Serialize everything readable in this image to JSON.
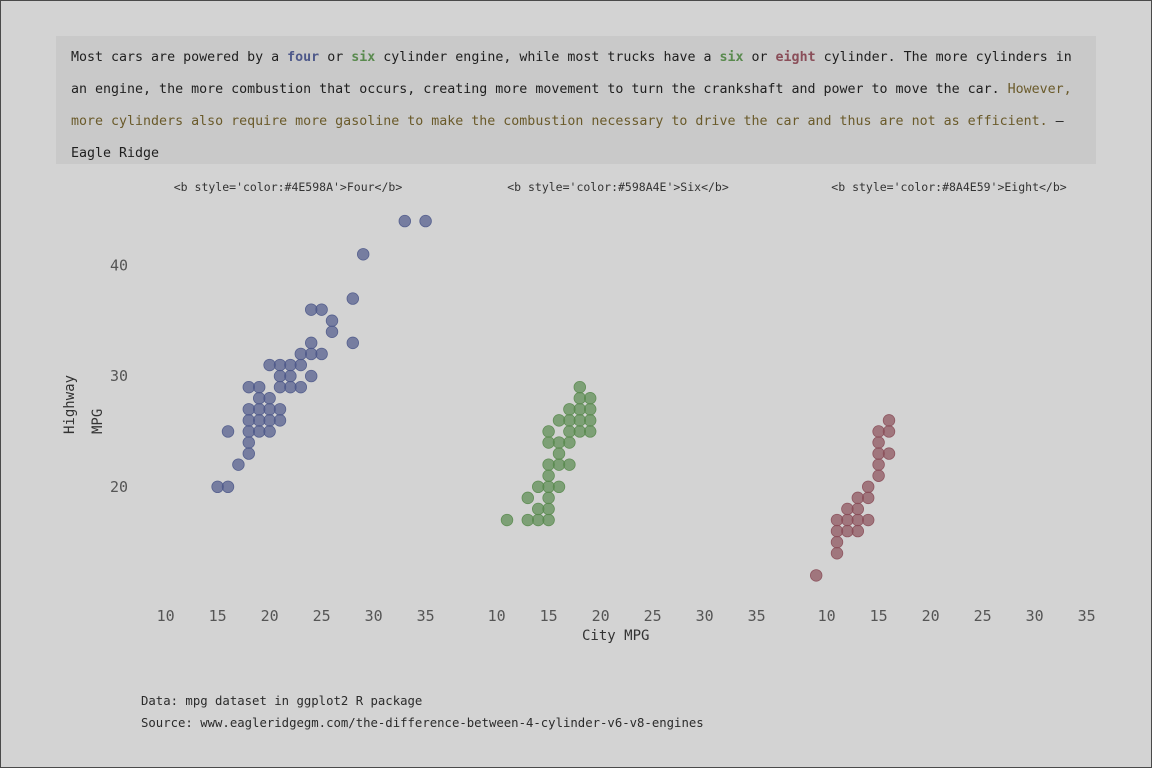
{
  "intro": {
    "t1": "Most cars are powered by a ",
    "four": "four",
    "t2": " or ",
    "six": "six",
    "t3": " cylinder engine, while most trucks have a ",
    "six2": "six",
    "t4": " or ",
    "eight": "eight",
    "t5": " cylinder. The more cylinders in an engine, the more combustion that occurs, creating more movement to turn the crankshaft and power to move the car. ",
    "quote": "However, more cylinders also require more gasoline to make the combustion necessary to drive the car and thus are not as efficient.",
    "attribution": " – Eagle Ridge"
  },
  "colors": {
    "four": "#4E598A",
    "six": "#598A4E",
    "eight": "#8A4E59"
  },
  "caption": {
    "line1": "Data: mpg dataset in ggplot2 R package",
    "line2": "Source: www.eagleridgegm.com/the-difference-between-4-cylinder-v6-v8-engines"
  },
  "chart_data": {
    "type": "scatter",
    "xlabel": "City MPG",
    "ylabel": "Highway MPG",
    "xlim": [
      8.5,
      36
    ],
    "ylim": [
      10.5,
      45
    ],
    "x_ticks": [
      10,
      15,
      20,
      25,
      30,
      35
    ],
    "y_ticks": [
      20,
      30,
      40
    ],
    "facets": [
      {
        "title": "<b style='color:#4E598A'>Four</b>",
        "color": "#4E598A",
        "points": [
          [
            15,
            20
          ],
          [
            16,
            20
          ],
          [
            16,
            25
          ],
          [
            17,
            22
          ],
          [
            18,
            23
          ],
          [
            18,
            24
          ],
          [
            18,
            25
          ],
          [
            18,
            26
          ],
          [
            18,
            27
          ],
          [
            18,
            29
          ],
          [
            19,
            25
          ],
          [
            19,
            26
          ],
          [
            19,
            27
          ],
          [
            19,
            28
          ],
          [
            19,
            29
          ],
          [
            20,
            25
          ],
          [
            20,
            26
          ],
          [
            20,
            27
          ],
          [
            20,
            28
          ],
          [
            20,
            31
          ],
          [
            21,
            26
          ],
          [
            21,
            27
          ],
          [
            21,
            29
          ],
          [
            21,
            30
          ],
          [
            21,
            31
          ],
          [
            22,
            29
          ],
          [
            22,
            30
          ],
          [
            22,
            31
          ],
          [
            23,
            29
          ],
          [
            23,
            31
          ],
          [
            23,
            32
          ],
          [
            24,
            30
          ],
          [
            24,
            32
          ],
          [
            24,
            33
          ],
          [
            24,
            36
          ],
          [
            25,
            32
          ],
          [
            25,
            36
          ],
          [
            26,
            34
          ],
          [
            26,
            35
          ],
          [
            28,
            33
          ],
          [
            28,
            37
          ],
          [
            29,
            41
          ],
          [
            33,
            44
          ],
          [
            35,
            44
          ]
        ]
      },
      {
        "title": "<b style='color:#598A4E'>Six</b>",
        "color": "#598A4E",
        "points": [
          [
            11,
            17
          ],
          [
            13,
            17
          ],
          [
            13,
            19
          ],
          [
            14,
            17
          ],
          [
            14,
            18
          ],
          [
            14,
            20
          ],
          [
            15,
            17
          ],
          [
            15,
            18
          ],
          [
            15,
            19
          ],
          [
            15,
            20
          ],
          [
            15,
            21
          ],
          [
            15,
            22
          ],
          [
            15,
            24
          ],
          [
            15,
            25
          ],
          [
            16,
            20
          ],
          [
            16,
            22
          ],
          [
            16,
            23
          ],
          [
            16,
            24
          ],
          [
            16,
            26
          ],
          [
            17,
            22
          ],
          [
            17,
            24
          ],
          [
            17,
            25
          ],
          [
            17,
            26
          ],
          [
            17,
            27
          ],
          [
            18,
            25
          ],
          [
            18,
            26
          ],
          [
            18,
            27
          ],
          [
            18,
            28
          ],
          [
            18,
            29
          ],
          [
            19,
            25
          ],
          [
            19,
            26
          ],
          [
            19,
            27
          ],
          [
            19,
            28
          ]
        ]
      },
      {
        "title": "<b style='color:#8A4E59'>Eight</b>",
        "color": "#8A4E59",
        "points": [
          [
            9,
            12
          ],
          [
            11,
            14
          ],
          [
            11,
            15
          ],
          [
            11,
            16
          ],
          [
            11,
            17
          ],
          [
            12,
            16
          ],
          [
            12,
            17
          ],
          [
            12,
            18
          ],
          [
            13,
            16
          ],
          [
            13,
            17
          ],
          [
            13,
            18
          ],
          [
            13,
            19
          ],
          [
            14,
            17
          ],
          [
            14,
            19
          ],
          [
            14,
            20
          ],
          [
            15,
            21
          ],
          [
            15,
            22
          ],
          [
            15,
            23
          ],
          [
            15,
            24
          ],
          [
            15,
            25
          ],
          [
            16,
            23
          ],
          [
            16,
            25
          ],
          [
            16,
            26
          ]
        ]
      }
    ]
  }
}
